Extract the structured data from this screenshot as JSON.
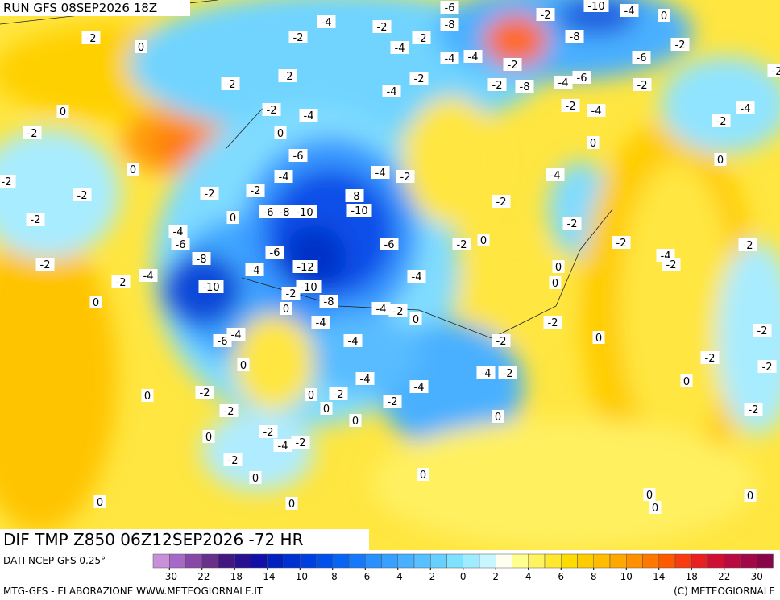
{
  "header": {
    "run": "RUN GFS 08SEP2026 18Z"
  },
  "title_bar": "DIF TMP Z850 06Z12SEP2026 -72 HR",
  "footer": {
    "source": "DATI NCEP GFS 0.25°",
    "credit": "MTG-GFS - ELABORAZIONE WWW.METEOGIORNALE.IT",
    "copyright": "(C) METEOGIORNALE"
  },
  "colorbar": {
    "colors": [
      "#c890d8",
      "#a868c8",
      "#8848a8",
      "#683088",
      "#401880",
      "#281090",
      "#1010a8",
      "#0020c0",
      "#0030d0",
      "#0040e0",
      "#0050ec",
      "#0864f4",
      "#1878fa",
      "#2890ff",
      "#38a0ff",
      "#48b0ff",
      "#58c0ff",
      "#68d0ff",
      "#80e0ff",
      "#a0ecff",
      "#c8f6ff",
      "#fffff0",
      "#ffff90",
      "#fff460",
      "#ffe830",
      "#ffdc00",
      "#ffcc00",
      "#ffbc00",
      "#ffa800",
      "#ff9000",
      "#ff7800",
      "#ff5a00",
      "#f83c10",
      "#e82020",
      "#d01030",
      "#b80c40",
      "#a00848",
      "#880648"
    ],
    "ticks": [
      "-30",
      "-22",
      "-18",
      "-14",
      "-10",
      "-8",
      "-6",
      "-4",
      "-2",
      "0",
      "2",
      "4",
      "6",
      "8",
      "10",
      "14",
      "18",
      "22",
      "30"
    ]
  },
  "contour_labels": [
    "-2",
    "0",
    "-2",
    "0",
    "0",
    "-2",
    "-2",
    "-2",
    "-2",
    "-2",
    "0",
    "-4",
    "-4",
    "-6",
    "-8",
    "-10",
    "-6",
    "-4",
    "0",
    "0",
    "-2",
    "-2",
    "0",
    "-2",
    "-2",
    "-4",
    "-2",
    "0",
    "0",
    "0",
    "-4",
    "-2",
    "-2",
    "-2",
    "-2",
    "-4",
    "0",
    "-6",
    "-4",
    "-2",
    "-2",
    "0",
    "-6",
    "-8",
    "-10",
    "-8",
    "-10",
    "-6",
    "-6",
    "-12",
    "-10",
    "-4",
    "-8",
    "-2",
    "0",
    "-4",
    "-4",
    "-4",
    "-2",
    "0",
    "-4",
    "-4",
    "-2",
    "0",
    "-2",
    "0",
    "0",
    "-4",
    "0",
    "-2",
    "-4",
    "-2",
    "-2",
    "-4",
    "-2",
    "-2",
    "0",
    "0",
    "-2",
    "-2",
    "-4",
    "-2",
    "0",
    "0",
    "0",
    "-4",
    "-2",
    "-2",
    "-4",
    "0",
    "-4",
    "-2",
    "-2",
    "-2",
    "-2",
    "-2",
    "0",
    "-2",
    "0",
    "0",
    "0",
    "0",
    "-2",
    "-4",
    "-2",
    "-8",
    "-6",
    "-4",
    "-4",
    "-2",
    "-2",
    "-8",
    "-4",
    "-6",
    "-2",
    "-8",
    "-10",
    "-4",
    "0",
    "-6",
    "-2",
    "-2",
    "-2",
    "-4",
    "-2"
  ]
}
